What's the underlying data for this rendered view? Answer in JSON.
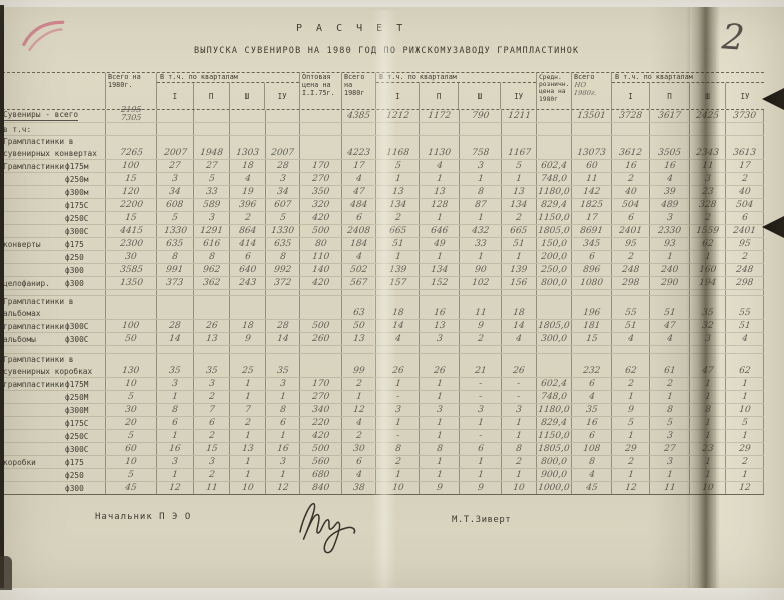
{
  "page": {
    "page_number": "2",
    "title": "Р А С Ч Е Т",
    "subtitle": "ВЫПУСКА  СУВЕНИРОВ НА  1980  ГОД ПО РИЖСКОМУЗАВОДУ  ГРАМПЛАСТИНОК",
    "footer": {
      "left": "Начальник  П Э О",
      "right": "М.Т.Зиверт"
    },
    "colors": {
      "paper": "#d9d5c0",
      "ink": "#3f3c33",
      "pencil": "#615e56",
      "pink_mark": "#cf5a78"
    }
  },
  "table": {
    "headers": {
      "total_a": "Всего на 1980г.",
      "quarters": "В т.ч. по кварталам",
      "quarter_labels": [
        "I",
        "П",
        "Ш",
        "IУ"
      ],
      "price_wholesale": "Оптовая цена на I.I.75г.",
      "total_b": "Всего на 1980г",
      "price_retail": "Средн. розничн. цена на 1980г",
      "total_c": "Всего",
      "total_c_hw": "НО 1980г."
    },
    "rows": [
      {
        "l1": "Сувениры - всего",
        "ul": true,
        "a_crossed": "2195",
        "a_fix": "7305",
        "b": [
          "4385",
          "1212",
          "1172",
          "790",
          "1211"
        ],
        "c": [
          "13501",
          "3728",
          "3617",
          "2425",
          "3730"
        ]
      },
      {
        "l1": "в т.ч:"
      },
      {
        "l1": "Грампластинки в",
        "l2": "сувенирных конвертах",
        "a": [
          "7265",
          "2007",
          "1948",
          "1303",
          "2007"
        ],
        "b": [
          "4223",
          "1168",
          "1130",
          "758",
          "1167"
        ],
        "c": [
          "13073",
          "3612",
          "3505",
          "2343",
          "3613"
        ]
      },
      {
        "l1": "Грампластинки",
        "size": "ф175м",
        "a": [
          "100",
          "27",
          "27",
          "18",
          "28"
        ],
        "p1": "170",
        "b": [
          "17",
          "5",
          "4",
          "3",
          "5"
        ],
        "p2": "602,4",
        "c": [
          "60",
          "16",
          "16",
          "11",
          "17"
        ]
      },
      {
        "size": "ф250м",
        "a": [
          "15",
          "3",
          "5",
          "4",
          "3"
        ],
        "p1": "270",
        "b": [
          "4",
          "1",
          "1",
          "1",
          "1"
        ],
        "p2": "748,0",
        "c": [
          "11",
          "2",
          "4",
          "3",
          "2"
        ]
      },
      {
        "size": "ф300м",
        "a": [
          "120",
          "34",
          "33",
          "19",
          "34"
        ],
        "p1": "350",
        "b": [
          "47",
          "13",
          "13",
          "8",
          "13"
        ],
        "p2": "1180,0",
        "c": [
          "142",
          "40",
          "39",
          "23",
          "40"
        ]
      },
      {
        "size": "ф175С",
        "a": [
          "2200",
          "608",
          "589",
          "396",
          "607"
        ],
        "p1": "320",
        "b": [
          "484",
          "134",
          "128",
          "87",
          "134"
        ],
        "p2": "829,4",
        "c": [
          "1825",
          "504",
          "489",
          "328",
          "504"
        ]
      },
      {
        "size": "ф250С",
        "a": [
          "15",
          "5",
          "3",
          "2",
          "5"
        ],
        "p1": "420",
        "b": [
          "6",
          "2",
          "1",
          "1",
          "2"
        ],
        "p2": "1150,0",
        "c": [
          "17",
          "6",
          "3",
          "2",
          "6"
        ]
      },
      {
        "size": "ф300С",
        "a": [
          "4415",
          "1330",
          "1291",
          "864",
          "1330"
        ],
        "p1": "500",
        "b": [
          "2408",
          "665",
          "646",
          "432",
          "665"
        ],
        "p2": "1805,0",
        "c": [
          "8691",
          "2401",
          "2330",
          "1559",
          "2401"
        ]
      },
      {
        "l1": "конверты",
        "size": "ф175",
        "a": [
          "2300",
          "635",
          "616",
          "414",
          "635"
        ],
        "p1": "80",
        "b": [
          "184",
          "51",
          "49",
          "33",
          "51"
        ],
        "p2": "150,0",
        "c": [
          "345",
          "95",
          "93",
          "62",
          "95"
        ]
      },
      {
        "size": "ф250",
        "a": [
          "30",
          "8",
          "8",
          "6",
          "8"
        ],
        "p1": "110",
        "b": [
          "4",
          "1",
          "1",
          "1",
          "1"
        ],
        "p2": "200,0",
        "c": [
          "6",
          "2",
          "1",
          "1",
          "2"
        ]
      },
      {
        "size": "ф300",
        "a": [
          "3585",
          "991",
          "962",
          "640",
          "992"
        ],
        "p1": "140",
        "b": [
          "502",
          "139",
          "134",
          "90",
          "139"
        ],
        "p2": "250,0",
        "c": [
          "896",
          "248",
          "240",
          "160",
          "248"
        ]
      },
      {
        "l1": "целофанир.",
        "size": "ф300",
        "a": [
          "1350",
          "373",
          "362",
          "243",
          "372"
        ],
        "p1": "420",
        "b": [
          "567",
          "157",
          "152",
          "102",
          "156"
        ],
        "p2": "800,0",
        "c": [
          "1080",
          "298",
          "290",
          "194",
          "298"
        ]
      },
      {
        "spacer": 6
      },
      {
        "l1": "Грампластинки в",
        "l2": "альбомах",
        "valign": "top",
        "b": [
          "63",
          "18",
          "16",
          "11",
          "18"
        ],
        "c": [
          "196",
          "55",
          "51",
          "35",
          "55"
        ]
      },
      {
        "l1": "грампластинки",
        "size": "ф300С",
        "a": [
          "100",
          "28",
          "26",
          "18",
          "28"
        ],
        "p1": "500",
        "b": [
          "50",
          "14",
          "13",
          "9",
          "14"
        ],
        "p2": "1805,0",
        "c": [
          "181",
          "51",
          "47",
          "32",
          "51"
        ]
      },
      {
        "l1": "альбомы",
        "size": "ф300С",
        "a": [
          "50",
          "14",
          "13",
          "9",
          "14"
        ],
        "p1": "260",
        "b": [
          "13",
          "4",
          "3",
          "2",
          "4"
        ],
        "p2": "300,0",
        "c": [
          "15",
          "4",
          "4",
          "3",
          "4"
        ]
      },
      {
        "spacer": 8
      },
      {
        "l1": "Грампластинки в",
        "l2": "сувенирных коробках",
        "a": [
          "130",
          "35",
          "35",
          "25",
          "35"
        ],
        "b": [
          "99",
          "26",
          "26",
          "21",
          "26"
        ],
        "c": [
          "232",
          "62",
          "61",
          "47",
          "62"
        ]
      },
      {
        "l1": "грампластинки",
        "size": "ф175М",
        "a": [
          "10",
          "3",
          "3",
          "1",
          "3"
        ],
        "p1": "170",
        "b": [
          "2",
          "1",
          "1",
          "-",
          "-"
        ],
        "p2": "602,4",
        "c": [
          "6",
          "2",
          "2",
          "1",
          "1"
        ]
      },
      {
        "size": "ф250М",
        "a": [
          "5",
          "1",
          "2",
          "1",
          "1"
        ],
        "p1": "270",
        "b": [
          "1",
          "-",
          "1",
          "-",
          "-"
        ],
        "p2": "748,0",
        "c": [
          "4",
          "1",
          "1",
          "1",
          "1"
        ]
      },
      {
        "size": "ф300М",
        "a": [
          "30",
          "8",
          "7",
          "7",
          "8"
        ],
        "p1": "340",
        "b": [
          "12",
          "3",
          "3",
          "3",
          "3"
        ],
        "p2": "1180,0",
        "c": [
          "35",
          "9",
          "8",
          "8",
          "10"
        ]
      },
      {
        "size": "ф175С",
        "a": [
          "20",
          "6",
          "6",
          "2",
          "6"
        ],
        "p1": "220",
        "b": [
          "4",
          "1",
          "1",
          "1",
          "1"
        ],
        "p2": "829,4",
        "c": [
          "16",
          "5",
          "5",
          "1",
          "5"
        ]
      },
      {
        "size": "ф250С",
        "a": [
          "5",
          "1",
          "2",
          "1",
          "1"
        ],
        "p1": "420",
        "b": [
          "2",
          "-",
          "1",
          "-",
          "1"
        ],
        "p2": "1150,0",
        "c": [
          "6",
          "1",
          "3",
          "1",
          "1"
        ]
      },
      {
        "size": "ф300С",
        "a": [
          "60",
          "16",
          "15",
          "13",
          "16"
        ],
        "p1": "500",
        "b": [
          "30",
          "8",
          "8",
          "6",
          "8"
        ],
        "p2": "1805,0",
        "c": [
          "108",
          "29",
          "27",
          "23",
          "29"
        ]
      },
      {
        "l1": "коробки",
        "size": "ф175",
        "a": [
          "10",
          "3",
          "3",
          "1",
          "3"
        ],
        "p1": "560",
        "b": [
          "6",
          "2",
          "1",
          "1",
          "2"
        ],
        "p2": "800,0",
        "c": [
          "8",
          "2",
          "3",
          "1",
          "2"
        ]
      },
      {
        "size": "ф250",
        "a": [
          "5",
          "1",
          "2",
          "1",
          "1"
        ],
        "p1": "680",
        "b": [
          "4",
          "1",
          "1",
          "1",
          "1"
        ],
        "p2": "900,0",
        "c": [
          "4",
          "1",
          "1",
          "1",
          "1"
        ]
      },
      {
        "size": "ф300",
        "a": [
          "45",
          "12",
          "11",
          "10",
          "12"
        ],
        "p1": "840",
        "b": [
          "38",
          "10",
          "9",
          "9",
          "10"
        ],
        "p2": "1000,0",
        "c": [
          "45",
          "12",
          "11",
          "10",
          "12"
        ],
        "last": true
      }
    ]
  }
}
